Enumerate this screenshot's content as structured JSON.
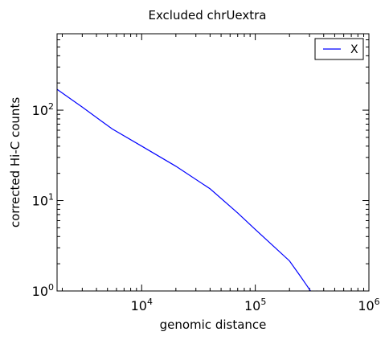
{
  "chart_data": {
    "type": "line",
    "title": "Excluded chrUextra",
    "xlabel": "genomic distance",
    "ylabel": "corrected Hi-C counts",
    "xscale": "log",
    "yscale": "log",
    "xlim": [
      1800,
      1000000
    ],
    "ylim": [
      1,
      700
    ],
    "x_ticks": [
      {
        "value": 10000,
        "base": "10",
        "exp": "4"
      },
      {
        "value": 100000,
        "base": "10",
        "exp": "5"
      },
      {
        "value": 1000000,
        "base": "10",
        "exp": "6"
      }
    ],
    "y_ticks": [
      {
        "value": 1,
        "base": "10",
        "exp": "0"
      },
      {
        "value": 10,
        "base": "10",
        "exp": "1"
      },
      {
        "value": 100,
        "base": "10",
        "exp": "2"
      }
    ],
    "grid": false,
    "legend_position": "top-right",
    "series": [
      {
        "name": "X",
        "color": "#0000ff",
        "x": [
          1800,
          3000,
          5500,
          10000,
          20000,
          40000,
          70000,
          100000,
          150000,
          200000,
          250000,
          310000,
          350000
        ],
        "y": [
          170,
          108,
          62,
          40,
          24,
          13.5,
          7.3,
          4.8,
          3.0,
          2.15,
          1.45,
          0.98,
          1.0
        ]
      }
    ]
  }
}
